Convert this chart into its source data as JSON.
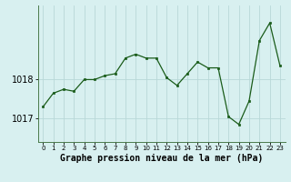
{
  "x": [
    0,
    1,
    2,
    3,
    4,
    5,
    6,
    7,
    8,
    9,
    10,
    11,
    12,
    13,
    14,
    15,
    16,
    17,
    18,
    19,
    20,
    21,
    22,
    23
  ],
  "y": [
    1017.3,
    1017.65,
    1017.75,
    1017.7,
    1018.0,
    1018.0,
    1018.1,
    1018.15,
    1018.55,
    1018.65,
    1018.55,
    1018.55,
    1018.05,
    1017.85,
    1018.15,
    1018.45,
    1018.3,
    1018.3,
    1017.05,
    1016.85,
    1017.45,
    1019.0,
    1019.45,
    1018.35
  ],
  "line_color": "#1a5c1a",
  "marker_color": "#1a5c1a",
  "bg_color": "#d8f0f0",
  "grid_color": "#b8d8d8",
  "xlabel": "Graphe pression niveau de la mer (hPa)",
  "xlabel_fontsize": 7,
  "ytick_fontsize": 7,
  "xtick_fontsize": 5,
  "yticks": [
    1017,
    1018
  ],
  "ylim": [
    1016.4,
    1019.9
  ],
  "xlim": [
    -0.5,
    23.5
  ],
  "xtick_labels": [
    "0",
    "1",
    "2",
    "3",
    "4",
    "5",
    "6",
    "7",
    "8",
    "9",
    "10",
    "11",
    "12",
    "13",
    "14",
    "15",
    "16",
    "17",
    "18",
    "19",
    "20",
    "21",
    "22",
    "23"
  ],
  "figsize": [
    3.2,
    2.0
  ],
  "dpi": 100
}
